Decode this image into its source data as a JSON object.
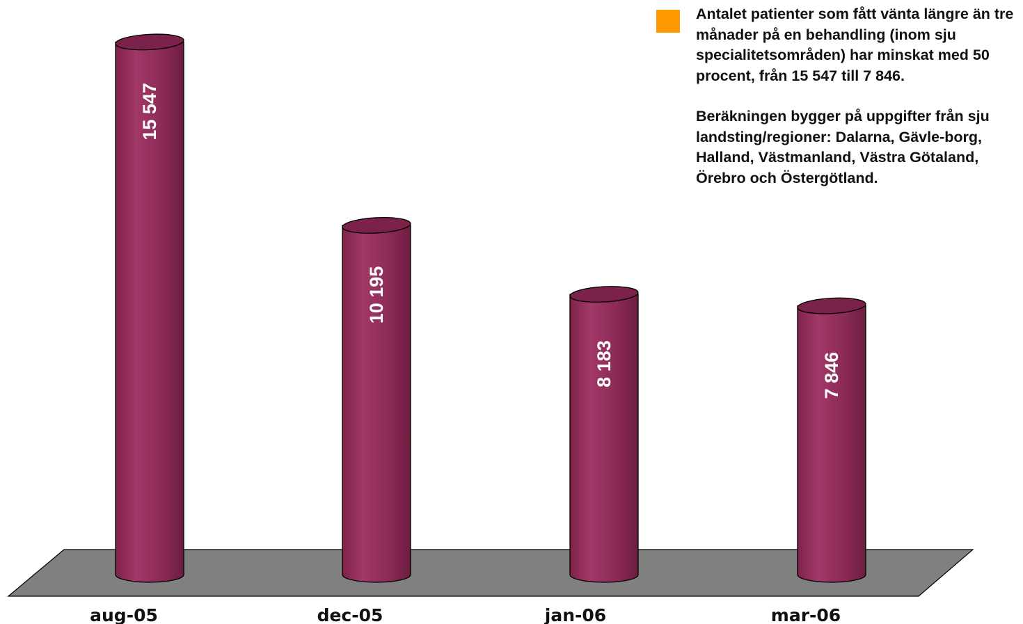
{
  "chart_data": {
    "type": "bar",
    "bar_shape": "cylinder",
    "categories": [
      "aug-05",
      "dec-05",
      "jan-06",
      "mar-06"
    ],
    "values": [
      15547,
      10195,
      8183,
      7846
    ],
    "value_labels": [
      "15 547",
      "10 195",
      "8 183",
      "7 846"
    ],
    "title": "",
    "xlabel": "",
    "ylabel": "",
    "ylim": [
      0,
      15900
    ],
    "grid": false,
    "legend_position": "top-right",
    "colors": {
      "bar": "#8e2a56",
      "bar_highlight": "#a83a6a",
      "bar_shadow": "#6d1e42",
      "bar_top": "#7a2249",
      "floor": "#808080",
      "legend_swatch": "#ff9900"
    }
  },
  "annotation": {
    "paragraphs": [
      "Antalet patienter som fått vänta längre än tre månader på en behandling (inom sju specialitetsområden) har minskat med 50 procent, från 15 547 till 7 846.",
      "Beräkningen bygger på uppgifter från sju landsting/regioner: Dalarna, Gävle-borg, Halland, Västmanland, Västra Götaland, Örebro och Östergötland."
    ]
  }
}
